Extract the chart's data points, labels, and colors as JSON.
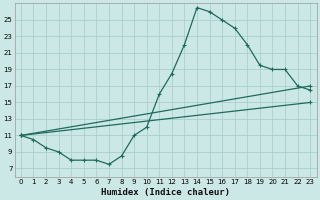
{
  "xlabel": "Humidex (Indice chaleur)",
  "bg_color": "#cce8e6",
  "line_color": "#1e6b5e",
  "grid_color": "#aacfcc",
  "xlim": [
    -0.5,
    23.5
  ],
  "ylim": [
    6.0,
    27.0
  ],
  "yticks": [
    7,
    9,
    11,
    13,
    15,
    17,
    19,
    21,
    23,
    25
  ],
  "xticks": [
    0,
    1,
    2,
    3,
    4,
    5,
    6,
    7,
    8,
    9,
    10,
    11,
    12,
    13,
    14,
    15,
    16,
    17,
    18,
    19,
    20,
    21,
    22,
    23
  ],
  "line1_x": [
    0,
    1,
    2,
    3,
    4,
    5,
    6,
    7,
    8,
    9,
    10,
    11,
    12,
    13,
    14,
    15,
    16,
    17,
    18,
    19,
    20,
    21,
    22,
    23
  ],
  "line1_y": [
    11,
    10.5,
    9.5,
    9.0,
    8.0,
    8.0,
    8.0,
    7.5,
    8.5,
    11.0,
    12.0,
    16.0,
    18.5,
    22.0,
    26.5,
    26.0,
    25.0,
    24.0,
    22.0,
    19.5,
    19.0,
    19.0,
    17.0,
    16.5
  ],
  "line2_x": [
    0,
    23
  ],
  "line2_y": [
    11,
    15
  ],
  "line3_x": [
    0,
    23
  ],
  "line3_y": [
    11,
    17
  ],
  "ylabel_fontsize": 6,
  "xlabel_fontsize": 6.5,
  "tick_fontsize": 5.0
}
